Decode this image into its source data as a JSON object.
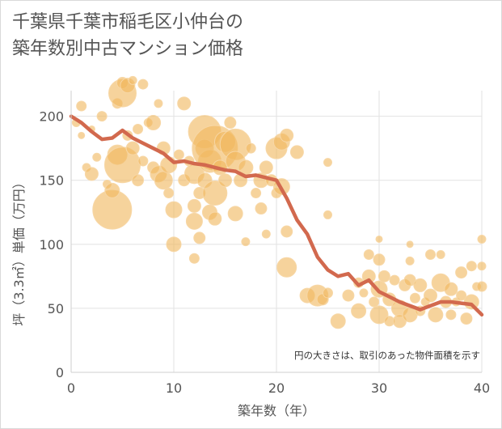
{
  "title": "千葉県千葉市稲毛区小仲台の\n築年数別中古マンション価格",
  "colors": {
    "bubble": "#f0b860",
    "bubble_stroke": "#f7d7a6",
    "line": "#d2694e",
    "grid": "#e2e2e2",
    "axis_text": "#555555"
  },
  "chart_data": {
    "type": "scatter",
    "title": "千葉県千葉市稲毛区小仲台の\n築年数別中古マンション価格",
    "xlabel": "築年数（年）",
    "ylabel": "坪（3.3㎡）単価（万円）",
    "xlim": [
      0,
      40
    ],
    "ylim": [
      0,
      220
    ],
    "xticks": [
      "0",
      "10",
      "20",
      "30",
      "40"
    ],
    "yticks": [
      "0",
      "50",
      "100",
      "150",
      "200"
    ],
    "grid": true,
    "annotation": "円の大きさは、取引のあった物件面積を示す",
    "bubbles": [
      {
        "x": 0.5,
        "y": 195,
        "s": 5
      },
      {
        "x": 1,
        "y": 185,
        "s": 4
      },
      {
        "x": 1,
        "y": 208,
        "s": 6
      },
      {
        "x": 1.5,
        "y": 160,
        "s": 5
      },
      {
        "x": 2,
        "y": 155,
        "s": 8
      },
      {
        "x": 2,
        "y": 190,
        "s": 4
      },
      {
        "x": 2.5,
        "y": 168,
        "s": 5
      },
      {
        "x": 3,
        "y": 200,
        "s": 6
      },
      {
        "x": 3.5,
        "y": 147,
        "s": 5
      },
      {
        "x": 4,
        "y": 127,
        "s": 24
      },
      {
        "x": 4,
        "y": 142,
        "s": 9
      },
      {
        "x": 4.5,
        "y": 170,
        "s": 12
      },
      {
        "x": 4.5,
        "y": 210,
        "s": 6
      },
      {
        "x": 5,
        "y": 218,
        "s": 17
      },
      {
        "x": 5,
        "y": 162,
        "s": 22
      },
      {
        "x": 5,
        "y": 226,
        "s": 7
      },
      {
        "x": 5.5,
        "y": 185,
        "s": 6
      },
      {
        "x": 5.5,
        "y": 224,
        "s": 9
      },
      {
        "x": 6,
        "y": 175,
        "s": 8
      },
      {
        "x": 6,
        "y": 228,
        "s": 5
      },
      {
        "x": 6.5,
        "y": 150,
        "s": 7
      },
      {
        "x": 6.5,
        "y": 190,
        "s": 6
      },
      {
        "x": 7,
        "y": 165,
        "s": 6
      },
      {
        "x": 7,
        "y": 225,
        "s": 6
      },
      {
        "x": 7.5,
        "y": 195,
        "s": 5
      },
      {
        "x": 8,
        "y": 195,
        "s": 9
      },
      {
        "x": 8,
        "y": 160,
        "s": 7
      },
      {
        "x": 8.5,
        "y": 155,
        "s": 10
      },
      {
        "x": 8.5,
        "y": 210,
        "s": 5
      },
      {
        "x": 9,
        "y": 150,
        "s": 11
      },
      {
        "x": 9,
        "y": 175,
        "s": 8
      },
      {
        "x": 9.5,
        "y": 162,
        "s": 10
      },
      {
        "x": 9.5,
        "y": 140,
        "s": 6
      },
      {
        "x": 10,
        "y": 127,
        "s": 10
      },
      {
        "x": 10,
        "y": 100,
        "s": 9
      },
      {
        "x": 10.5,
        "y": 170,
        "s": 6
      },
      {
        "x": 11,
        "y": 150,
        "s": 7
      },
      {
        "x": 11,
        "y": 210,
        "s": 8
      },
      {
        "x": 11.5,
        "y": 165,
        "s": 6
      },
      {
        "x": 12,
        "y": 155,
        "s": 12
      },
      {
        "x": 12,
        "y": 130,
        "s": 8
      },
      {
        "x": 12,
        "y": 118,
        "s": 10
      },
      {
        "x": 12,
        "y": 89,
        "s": 6
      },
      {
        "x": 12.5,
        "y": 140,
        "s": 7
      },
      {
        "x": 12.5,
        "y": 105,
        "s": 7
      },
      {
        "x": 13,
        "y": 188,
        "s": 20
      },
      {
        "x": 13,
        "y": 175,
        "s": 11
      },
      {
        "x": 13,
        "y": 150,
        "s": 9
      },
      {
        "x": 13.5,
        "y": 165,
        "s": 14
      },
      {
        "x": 13.5,
        "y": 125,
        "s": 9
      },
      {
        "x": 14,
        "y": 175,
        "s": 28
      },
      {
        "x": 14,
        "y": 140,
        "s": 15
      },
      {
        "x": 14,
        "y": 120,
        "s": 8
      },
      {
        "x": 14.5,
        "y": 160,
        "s": 9
      },
      {
        "x": 15,
        "y": 180,
        "s": 13
      },
      {
        "x": 15,
        "y": 150,
        "s": 8
      },
      {
        "x": 15.5,
        "y": 195,
        "s": 7
      },
      {
        "x": 16,
        "y": 178,
        "s": 19
      },
      {
        "x": 16,
        "y": 165,
        "s": 12
      },
      {
        "x": 16,
        "y": 124,
        "s": 9
      },
      {
        "x": 16.5,
        "y": 150,
        "s": 8
      },
      {
        "x": 17,
        "y": 160,
        "s": 9
      },
      {
        "x": 17,
        "y": 102,
        "s": 5
      },
      {
        "x": 17.5,
        "y": 175,
        "s": 6
      },
      {
        "x": 18,
        "y": 140,
        "s": 6
      },
      {
        "x": 18.5,
        "y": 150,
        "s": 9
      },
      {
        "x": 18.5,
        "y": 128,
        "s": 7
      },
      {
        "x": 19,
        "y": 160,
        "s": 8
      },
      {
        "x": 19,
        "y": 108,
        "s": 5
      },
      {
        "x": 19.5,
        "y": 150,
        "s": 7
      },
      {
        "x": 20,
        "y": 175,
        "s": 13
      },
      {
        "x": 20,
        "y": 140,
        "s": 6
      },
      {
        "x": 20.5,
        "y": 180,
        "s": 10
      },
      {
        "x": 20.5,
        "y": 145,
        "s": 10
      },
      {
        "x": 21,
        "y": 110,
        "s": 7
      },
      {
        "x": 21,
        "y": 82,
        "s": 12
      },
      {
        "x": 21,
        "y": 185,
        "s": 8
      },
      {
        "x": 22,
        "y": 172,
        "s": 8
      },
      {
        "x": 23,
        "y": 60,
        "s": 9
      },
      {
        "x": 24,
        "y": 60,
        "s": 13
      },
      {
        "x": 24.5,
        "y": 57,
        "s": 7
      },
      {
        "x": 25,
        "y": 164,
        "s": 5
      },
      {
        "x": 25,
        "y": 123,
        "s": 5
      },
      {
        "x": 25,
        "y": 62,
        "s": 6
      },
      {
        "x": 26,
        "y": 40,
        "s": 9
      },
      {
        "x": 27,
        "y": 60,
        "s": 7
      },
      {
        "x": 28,
        "y": 48,
        "s": 9
      },
      {
        "x": 28,
        "y": 70,
        "s": 6
      },
      {
        "x": 28.5,
        "y": 62,
        "s": 5
      },
      {
        "x": 29,
        "y": 92,
        "s": 6
      },
      {
        "x": 29,
        "y": 75,
        "s": 8
      },
      {
        "x": 29.5,
        "y": 55,
        "s": 6
      },
      {
        "x": 30,
        "y": 104,
        "s": 4
      },
      {
        "x": 30,
        "y": 88,
        "s": 7
      },
      {
        "x": 30,
        "y": 65,
        "s": 10
      },
      {
        "x": 30,
        "y": 45,
        "s": 11
      },
      {
        "x": 30.5,
        "y": 75,
        "s": 7
      },
      {
        "x": 31,
        "y": 57,
        "s": 8
      },
      {
        "x": 31,
        "y": 40,
        "s": 6
      },
      {
        "x": 31.5,
        "y": 72,
        "s": 6
      },
      {
        "x": 32,
        "y": 50,
        "s": 10
      },
      {
        "x": 32,
        "y": 40,
        "s": 8
      },
      {
        "x": 32.5,
        "y": 68,
        "s": 7
      },
      {
        "x": 33,
        "y": 100,
        "s": 4
      },
      {
        "x": 33,
        "y": 87,
        "s": 5
      },
      {
        "x": 33,
        "y": 72,
        "s": 7
      },
      {
        "x": 33,
        "y": 45,
        "s": 9
      },
      {
        "x": 33.5,
        "y": 58,
        "s": 6
      },
      {
        "x": 34,
        "y": 68,
        "s": 8
      },
      {
        "x": 34,
        "y": 48,
        "s": 6
      },
      {
        "x": 34.5,
        "y": 55,
        "s": 5
      },
      {
        "x": 35,
        "y": 92,
        "s": 6
      },
      {
        "x": 35,
        "y": 60,
        "s": 8
      },
      {
        "x": 35.5,
        "y": 45,
        "s": 9
      },
      {
        "x": 36,
        "y": 92,
        "s": 5
      },
      {
        "x": 36,
        "y": 70,
        "s": 11
      },
      {
        "x": 36.5,
        "y": 55,
        "s": 7
      },
      {
        "x": 37,
        "y": 65,
        "s": 8
      },
      {
        "x": 37,
        "y": 45,
        "s": 6
      },
      {
        "x": 37.5,
        "y": 55,
        "s": 5
      },
      {
        "x": 38,
        "y": 78,
        "s": 7
      },
      {
        "x": 38,
        "y": 60,
        "s": 6
      },
      {
        "x": 38.5,
        "y": 42,
        "s": 7
      },
      {
        "x": 39,
        "y": 83,
        "s": 6
      },
      {
        "x": 39,
        "y": 55,
        "s": 9
      },
      {
        "x": 39.5,
        "y": 67,
        "s": 5
      },
      {
        "x": 40,
        "y": 104,
        "s": 5
      },
      {
        "x": 40,
        "y": 83,
        "s": 5
      },
      {
        "x": 40,
        "y": 67,
        "s": 6
      }
    ],
    "trend": {
      "x": [
        0,
        1,
        2,
        3,
        4,
        5,
        6,
        7,
        8,
        9,
        10,
        11,
        12,
        13,
        14,
        15,
        16,
        17,
        18,
        19,
        20,
        21,
        22,
        23,
        24,
        25,
        26,
        27,
        28,
        29,
        30,
        31,
        32,
        33,
        34,
        35,
        36,
        37,
        38,
        39,
        40
      ],
      "y": [
        200,
        195,
        188,
        182,
        183,
        189,
        183,
        179,
        175,
        171,
        164,
        165,
        163,
        162,
        160,
        158,
        157,
        153,
        154,
        152,
        150,
        136,
        119,
        108,
        90,
        80,
        75,
        77,
        68,
        72,
        63,
        59,
        55,
        52,
        49,
        52,
        55,
        55,
        54,
        53,
        45
      ]
    }
  }
}
